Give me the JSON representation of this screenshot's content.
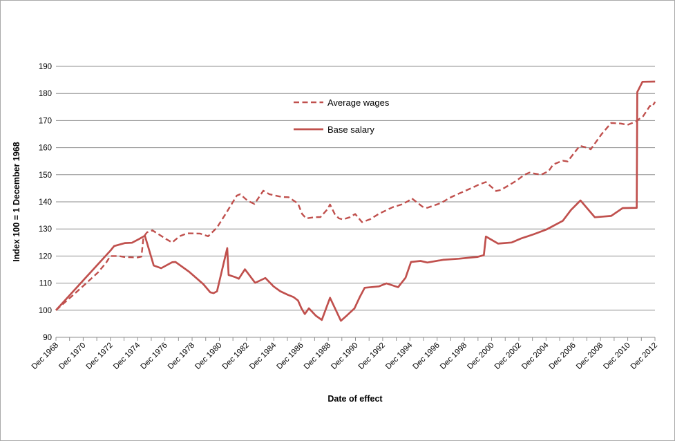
{
  "chart_data": {
    "type": "line",
    "title": "",
    "xlabel": "Date of effect",
    "ylabel": "Index 100 = 1 December 1968",
    "ylim": [
      90,
      190
    ],
    "y_ticks": [
      90,
      100,
      110,
      120,
      130,
      140,
      150,
      160,
      170,
      180,
      190
    ],
    "x_tick_labels": [
      "Dec 1968",
      "Dec 1970",
      "Dec 1972",
      "Dec 1974",
      "Dec 1976",
      "Dec 1978",
      "Dec 1980",
      "Dec 1982",
      "Dec 1984",
      "Dec 1986",
      "Dec 1988",
      "Dec 1990",
      "Dec 1992",
      "Dec 1994",
      "Dec 1996",
      "Dec 1998",
      "Dec 2000",
      "Dec 2002",
      "Dec 2004",
      "Dec 2006",
      "Dec 2008",
      "Dec 2010",
      "Dec 2012"
    ],
    "x_start_year": 1968.92,
    "x_span_years": 44,
    "x_minor_ticks": 44,
    "grid": "horizontal",
    "legend_position": "inside-top-center",
    "colors": {
      "accent": "#C0504D",
      "grid": "#8e8e8e",
      "axis": "#8e8e8e",
      "text": "#000000",
      "frame_border": "#a9a9a9"
    },
    "series": [
      {
        "name": "Average wages",
        "style": "dashed",
        "color": "#C0504D",
        "points": [
          [
            1968.92,
            100
          ],
          [
            1970.0,
            104.8
          ],
          [
            1971.0,
            109.3
          ],
          [
            1972.0,
            113.9
          ],
          [
            1972.6,
            117.5
          ],
          [
            1972.92,
            120.0
          ],
          [
            1973.5,
            120.0
          ],
          [
            1974.0,
            119.6
          ],
          [
            1974.92,
            119.5
          ],
          [
            1975.2,
            119.8
          ],
          [
            1975.35,
            127.0
          ],
          [
            1975.6,
            128.7
          ],
          [
            1976.0,
            129.5
          ],
          [
            1976.6,
            127.6
          ],
          [
            1977.0,
            126.3
          ],
          [
            1977.45,
            125.0
          ],
          [
            1978.0,
            127.3
          ],
          [
            1978.55,
            128.4
          ],
          [
            1979.5,
            128.3
          ],
          [
            1980.1,
            127.3
          ],
          [
            1980.75,
            130.5
          ],
          [
            1981.5,
            136.5
          ],
          [
            1982.2,
            142.3
          ],
          [
            1982.45,
            142.8
          ],
          [
            1983.0,
            140.4
          ],
          [
            1983.5,
            139.2
          ],
          [
            1984.15,
            144.1
          ],
          [
            1984.6,
            142.8
          ],
          [
            1985.5,
            141.8
          ],
          [
            1986.0,
            141.7
          ],
          [
            1986.7,
            139.4
          ],
          [
            1987.0,
            135.5
          ],
          [
            1987.3,
            133.9
          ],
          [
            1987.9,
            134.3
          ],
          [
            1988.35,
            134.4
          ],
          [
            1988.85,
            137.2
          ],
          [
            1989.05,
            139.0
          ],
          [
            1989.4,
            135.5
          ],
          [
            1989.7,
            133.9
          ],
          [
            1990.0,
            133.5
          ],
          [
            1990.5,
            134.3
          ],
          [
            1990.9,
            135.5
          ],
          [
            1991.4,
            132.5
          ],
          [
            1992.0,
            133.6
          ],
          [
            1992.65,
            135.6
          ],
          [
            1993.65,
            138.0
          ],
          [
            1994.3,
            139.0
          ],
          [
            1994.8,
            140.3
          ],
          [
            1995.05,
            141.3
          ],
          [
            1995.85,
            138.2
          ],
          [
            1996.2,
            137.8
          ],
          [
            1997.0,
            139.2
          ],
          [
            1997.35,
            140.0
          ],
          [
            1997.85,
            141.5
          ],
          [
            1998.5,
            143.0
          ],
          [
            1999.5,
            145.2
          ],
          [
            2000.0,
            146.4
          ],
          [
            2000.5,
            147.3
          ],
          [
            2001.25,
            144.0
          ],
          [
            2001.6,
            144.4
          ],
          [
            2002.15,
            146.0
          ],
          [
            2002.75,
            147.8
          ],
          [
            2003.3,
            149.9
          ],
          [
            2003.7,
            150.8
          ],
          [
            2004.2,
            150.3
          ],
          [
            2004.55,
            150.0
          ],
          [
            2005.1,
            151.3
          ],
          [
            2005.45,
            153.8
          ],
          [
            2006.15,
            155.2
          ],
          [
            2006.5,
            154.9
          ],
          [
            2007.4,
            160.7
          ],
          [
            2008.0,
            159.9
          ],
          [
            2008.2,
            159.4
          ],
          [
            2009.0,
            165.0
          ],
          [
            2009.7,
            169.1
          ],
          [
            2010.4,
            168.9
          ],
          [
            2010.9,
            168.4
          ],
          [
            2011.5,
            169.6
          ],
          [
            2012.05,
            171.6
          ],
          [
            2012.55,
            175.4
          ],
          [
            2012.7,
            175.1
          ],
          [
            2012.93,
            176.9
          ]
        ]
      },
      {
        "name": "Base salary",
        "style": "solid",
        "color": "#C0504D",
        "points": [
          [
            1968.92,
            100
          ],
          [
            1972.92,
            122.0
          ],
          [
            1973.2,
            123.7
          ],
          [
            1974.0,
            124.8
          ],
          [
            1974.5,
            124.9
          ],
          [
            1975.0,
            126.2
          ],
          [
            1975.45,
            127.5
          ],
          [
            1976.1,
            116.5
          ],
          [
            1976.65,
            115.5
          ],
          [
            1977.45,
            117.7
          ],
          [
            1977.7,
            117.8
          ],
          [
            1978.7,
            114.2
          ],
          [
            1979.75,
            109.6
          ],
          [
            1980.25,
            106.6
          ],
          [
            1980.5,
            106.3
          ],
          [
            1980.75,
            107.0
          ],
          [
            1981.5,
            122.9
          ],
          [
            1981.6,
            113.0
          ],
          [
            1982.1,
            112.2
          ],
          [
            1982.35,
            111.6
          ],
          [
            1982.8,
            115.1
          ],
          [
            1983.55,
            110.1
          ],
          [
            1984.3,
            111.9
          ],
          [
            1984.9,
            108.8
          ],
          [
            1985.4,
            107.0
          ],
          [
            1985.95,
            105.7
          ],
          [
            1986.35,
            104.9
          ],
          [
            1986.7,
            103.6
          ],
          [
            1986.95,
            100.7
          ],
          [
            1987.2,
            98.6
          ],
          [
            1987.5,
            100.7
          ],
          [
            1988.0,
            98.0
          ],
          [
            1988.45,
            96.4
          ],
          [
            1989.05,
            104.6
          ],
          [
            1989.85,
            96.1
          ],
          [
            1990.3,
            98.1
          ],
          [
            1990.85,
            100.7
          ],
          [
            1991.25,
            105.0
          ],
          [
            1991.6,
            108.3
          ],
          [
            1992.65,
            108.8
          ],
          [
            1993.2,
            109.9
          ],
          [
            1994.05,
            108.5
          ],
          [
            1994.6,
            112.0
          ],
          [
            1995.0,
            117.8
          ],
          [
            1995.7,
            118.2
          ],
          [
            1996.2,
            117.6
          ],
          [
            1997.35,
            118.6
          ],
          [
            1998.5,
            119.0
          ],
          [
            1999.9,
            119.7
          ],
          [
            2000.35,
            120.3
          ],
          [
            2000.5,
            127.2
          ],
          [
            2001.4,
            124.6
          ],
          [
            2002.4,
            125.0
          ],
          [
            2003.1,
            126.5
          ],
          [
            2004.0,
            128.0
          ],
          [
            2004.95,
            129.8
          ],
          [
            2006.15,
            133.0
          ],
          [
            2006.75,
            137.0
          ],
          [
            2007.45,
            140.5
          ],
          [
            2008.5,
            134.3
          ],
          [
            2009.7,
            134.8
          ],
          [
            2010.55,
            137.7
          ],
          [
            2011.58,
            137.8
          ],
          [
            2011.62,
            180.5
          ],
          [
            2012.0,
            184.3
          ],
          [
            2012.93,
            184.4
          ]
        ]
      }
    ]
  }
}
